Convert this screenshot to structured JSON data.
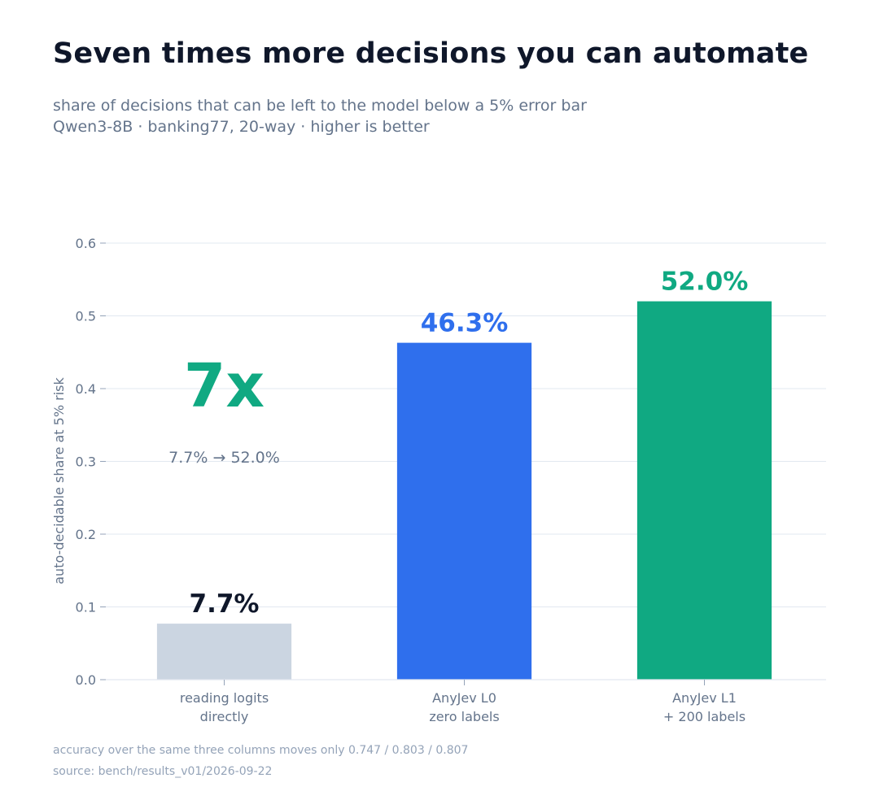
{
  "header": {
    "title": "Seven times more decisions you can automate",
    "subtitle_line1": "share of decisions that can be left to the model below a 5% error bar",
    "subtitle_line2": "Qwen3-8B  ·  banking77, 20-way  ·  higher is better"
  },
  "footer": {
    "note": "accuracy over the same three columns moves only 0.747 / 0.803 / 0.807",
    "source": "source: bench/results_v01/2026-09-22"
  },
  "chart_data": {
    "type": "bar",
    "categories": [
      [
        "reading logits",
        "directly"
      ],
      [
        "AnyJev L0",
        "zero labels"
      ],
      [
        "AnyJev L1",
        "+ 200 labels"
      ]
    ],
    "values": [
      0.077,
      0.463,
      0.52
    ],
    "value_labels": [
      "7.7%",
      "46.3%",
      "52.0%"
    ],
    "colors": [
      "#cbd5e1",
      "#2f6fed",
      "#10a982"
    ],
    "label_colors": [
      "#0f172a",
      "#2f6fed",
      "#10a982"
    ],
    "ylabel": "auto-decidable share at 5% risk",
    "ylim": [
      0,
      0.6
    ],
    "yticks": [
      0.0,
      0.1,
      0.2,
      0.3,
      0.4,
      0.5,
      0.6
    ],
    "ytick_labels": [
      "0.0",
      "0.1",
      "0.2",
      "0.3",
      "0.4",
      "0.5",
      "0.6"
    ],
    "grid": true,
    "annotation": {
      "big_text": "7x",
      "small_text": "7.7%  →  52.0%",
      "color": "#10a982",
      "small_color": "#64748b"
    }
  }
}
